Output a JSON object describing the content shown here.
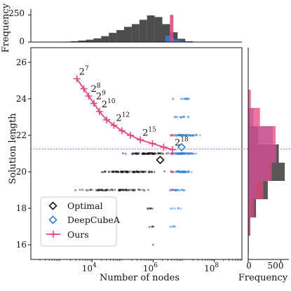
{
  "colors": {
    "ours": "#e8457f",
    "deepcubea": "#2f7fdc",
    "optimal": "#111111",
    "gray_hist": "#3a3a3a",
    "hline": "#e8457f"
  },
  "chart_data": {
    "type": "scatter",
    "title": "",
    "xlabel": "Number of nodes",
    "ylabel": "Solution length",
    "xscale": "log",
    "xlim": [
      100,
      800000000
    ],
    "ylim": [
      15.2,
      26.8
    ],
    "x_ticks": [
      {
        "value": 10000,
        "base": "10",
        "exp": "4"
      },
      {
        "value": 1000000,
        "base": "10",
        "exp": "6"
      },
      {
        "value": 100000000,
        "base": "10",
        "exp": "8"
      }
    ],
    "y_ticks": [
      "16",
      "18",
      "20",
      "22",
      "24",
      "26"
    ],
    "legend": {
      "position": "lower-left",
      "entries": [
        {
          "label": "Optimal",
          "marker": "diamond",
          "series": "optimal"
        },
        {
          "label": "DeepCubeA",
          "marker": "diamond",
          "series": "deepcubea"
        },
        {
          "label": "Ours",
          "marker": "plus",
          "series": "ours"
        }
      ]
    },
    "horizontal_line": {
      "y": 21.25,
      "style": "dotted",
      "series": "ours"
    },
    "series": [
      {
        "key": "ours",
        "marker": "plus-line",
        "points": [
          {
            "x": 3200,
            "y": 25.1,
            "label": {
              "base": "2",
              "exp": "7"
            }
          },
          {
            "x": 5400,
            "y": 24.55
          },
          {
            "x": 7800,
            "y": 24.15,
            "label": {
              "base": "2",
              "exp": "8"
            }
          },
          {
            "x": 11500,
            "y": 23.75,
            "label": {
              "base": "2",
              "exp": "9"
            }
          },
          {
            "x": 17500,
            "y": 23.3,
            "label": {
              "base": "2",
              "exp": "10"
            }
          },
          {
            "x": 30000,
            "y": 22.85
          },
          {
            "x": 52000,
            "y": 22.55,
            "label": {
              "base": "2",
              "exp": "12"
            }
          },
          {
            "x": 95000,
            "y": 22.25
          },
          {
            "x": 180000,
            "y": 22.0
          },
          {
            "x": 380000,
            "y": 21.75,
            "label": {
              "base": "2",
              "exp": "15"
            }
          },
          {
            "x": 950000,
            "y": 21.55
          },
          {
            "x": 2200000,
            "y": 21.35
          },
          {
            "x": 4300000,
            "y": 21.22,
            "label": {
              "base": "2",
              "exp": "18"
            }
          }
        ]
      },
      {
        "key": "deepcubea",
        "marker": "diamond-open",
        "points": [
          {
            "x": 8500000,
            "y": 21.35
          }
        ]
      },
      {
        "key": "optimal",
        "marker": "diamond-open",
        "points": [
          {
            "x": 1700000,
            "y": 20.65
          }
        ]
      }
    ],
    "scatter_clouds": [
      {
        "series": "optimal",
        "y": 21,
        "x_range": [
          60000,
          6000000
        ],
        "count": 70
      },
      {
        "series": "optimal",
        "y": 20,
        "x_range": [
          8000,
          3000000
        ],
        "count": 90
      },
      {
        "series": "optimal",
        "y": 19,
        "x_range": [
          2000,
          1500000
        ],
        "count": 70
      },
      {
        "series": "optimal",
        "y": 18,
        "x_range": [
          500000,
          1200000
        ],
        "count": 6
      },
      {
        "series": "optimal",
        "y": 17,
        "x_range": [
          700000,
          1300000
        ],
        "count": 4
      },
      {
        "series": "optimal",
        "y": 16,
        "x_range": [
          900000,
          1100000
        ],
        "count": 1
      },
      {
        "series": "deepcubea",
        "y": 24,
        "x_range": [
          5000000,
          25000000
        ],
        "count": 12
      },
      {
        "series": "deepcubea",
        "y": 23,
        "x_range": [
          4000000,
          20000000
        ],
        "count": 14
      },
      {
        "series": "deepcubea",
        "y": 22,
        "x_range": [
          3000000,
          40000000
        ],
        "count": 60
      },
      {
        "series": "deepcubea",
        "y": 21,
        "x_range": [
          2000000,
          35000000
        ],
        "count": 70
      },
      {
        "series": "deepcubea",
        "y": 20,
        "x_range": [
          3000000,
          25000000
        ],
        "count": 45
      },
      {
        "series": "deepcubea",
        "y": 19,
        "x_range": [
          2500000,
          15000000
        ],
        "count": 20
      },
      {
        "series": "deepcubea",
        "y": 18,
        "x_range": [
          2500000,
          10000000
        ],
        "count": 6
      },
      {
        "series": "deepcubea",
        "y": 17,
        "x_range": [
          3000000,
          8000000
        ],
        "count": 5
      },
      {
        "series": "ours",
        "y": 24,
        "x_range": [
          4000000,
          5000000
        ],
        "count": 2
      },
      {
        "series": "ours",
        "y": 22,
        "x_range": [
          3500000,
          5000000
        ],
        "count": 8
      },
      {
        "series": "ours",
        "y": 21,
        "x_range": [
          3500000,
          5000000
        ],
        "count": 12
      },
      {
        "series": "ours",
        "y": 20,
        "x_range": [
          3500000,
          5000000
        ],
        "count": 8
      },
      {
        "series": "ours",
        "y": 19,
        "x_range": [
          3500000,
          5000000
        ],
        "count": 4
      }
    ],
    "top_histogram": {
      "ylabel": "Frequency",
      "y_ticks": [
        "0",
        "250"
      ],
      "ylim": [
        0,
        290
      ],
      "log_bin_edges_start": 2.8,
      "log_bin_width": 0.25,
      "optimal_counts": [
        2,
        4,
        8,
        14,
        22,
        34,
        55,
        85,
        110,
        140,
        165,
        205,
        245,
        230,
        165,
        90,
        30,
        8,
        3
      ],
      "deepcubea_bins": [
        {
          "from": 6.4,
          "to": 6.55,
          "count": 60
        },
        {
          "from": 6.55,
          "to": 6.7,
          "count": 35
        },
        {
          "from": 6.7,
          "to": 6.85,
          "count": 20
        },
        {
          "from": 6.85,
          "to": 7.0,
          "count": 12
        },
        {
          "from": 7.0,
          "to": 7.15,
          "count": 6
        },
        {
          "from": 7.15,
          "to": 7.3,
          "count": 3
        }
      ],
      "ours_bins": [
        {
          "from": 6.55,
          "to": 6.66,
          "count": 250
        }
      ]
    },
    "right_histogram": {
      "xlabel": "Frequency",
      "x_ticks": [
        "0",
        "500"
      ],
      "xlim": [
        0,
        560
      ],
      "optimal_counts": {
        "15": 2,
        "16": 8,
        "17": 30,
        "18": 120,
        "19": 300,
        "20": 560,
        "21": 470,
        "22": 150,
        "23": 20,
        "24": 3
      },
      "deepcubea_counts": {
        "17": 10,
        "18": 40,
        "19": 120,
        "20": 320,
        "21": 430,
        "22": 380,
        "23": 80,
        "24": 10
      },
      "ours_counts": {
        "16": 5,
        "17": 25,
        "18": 90,
        "19": 230,
        "20": 360,
        "21": 430,
        "22": 420,
        "23": 180,
        "24": 40,
        "25": 5
      }
    }
  }
}
